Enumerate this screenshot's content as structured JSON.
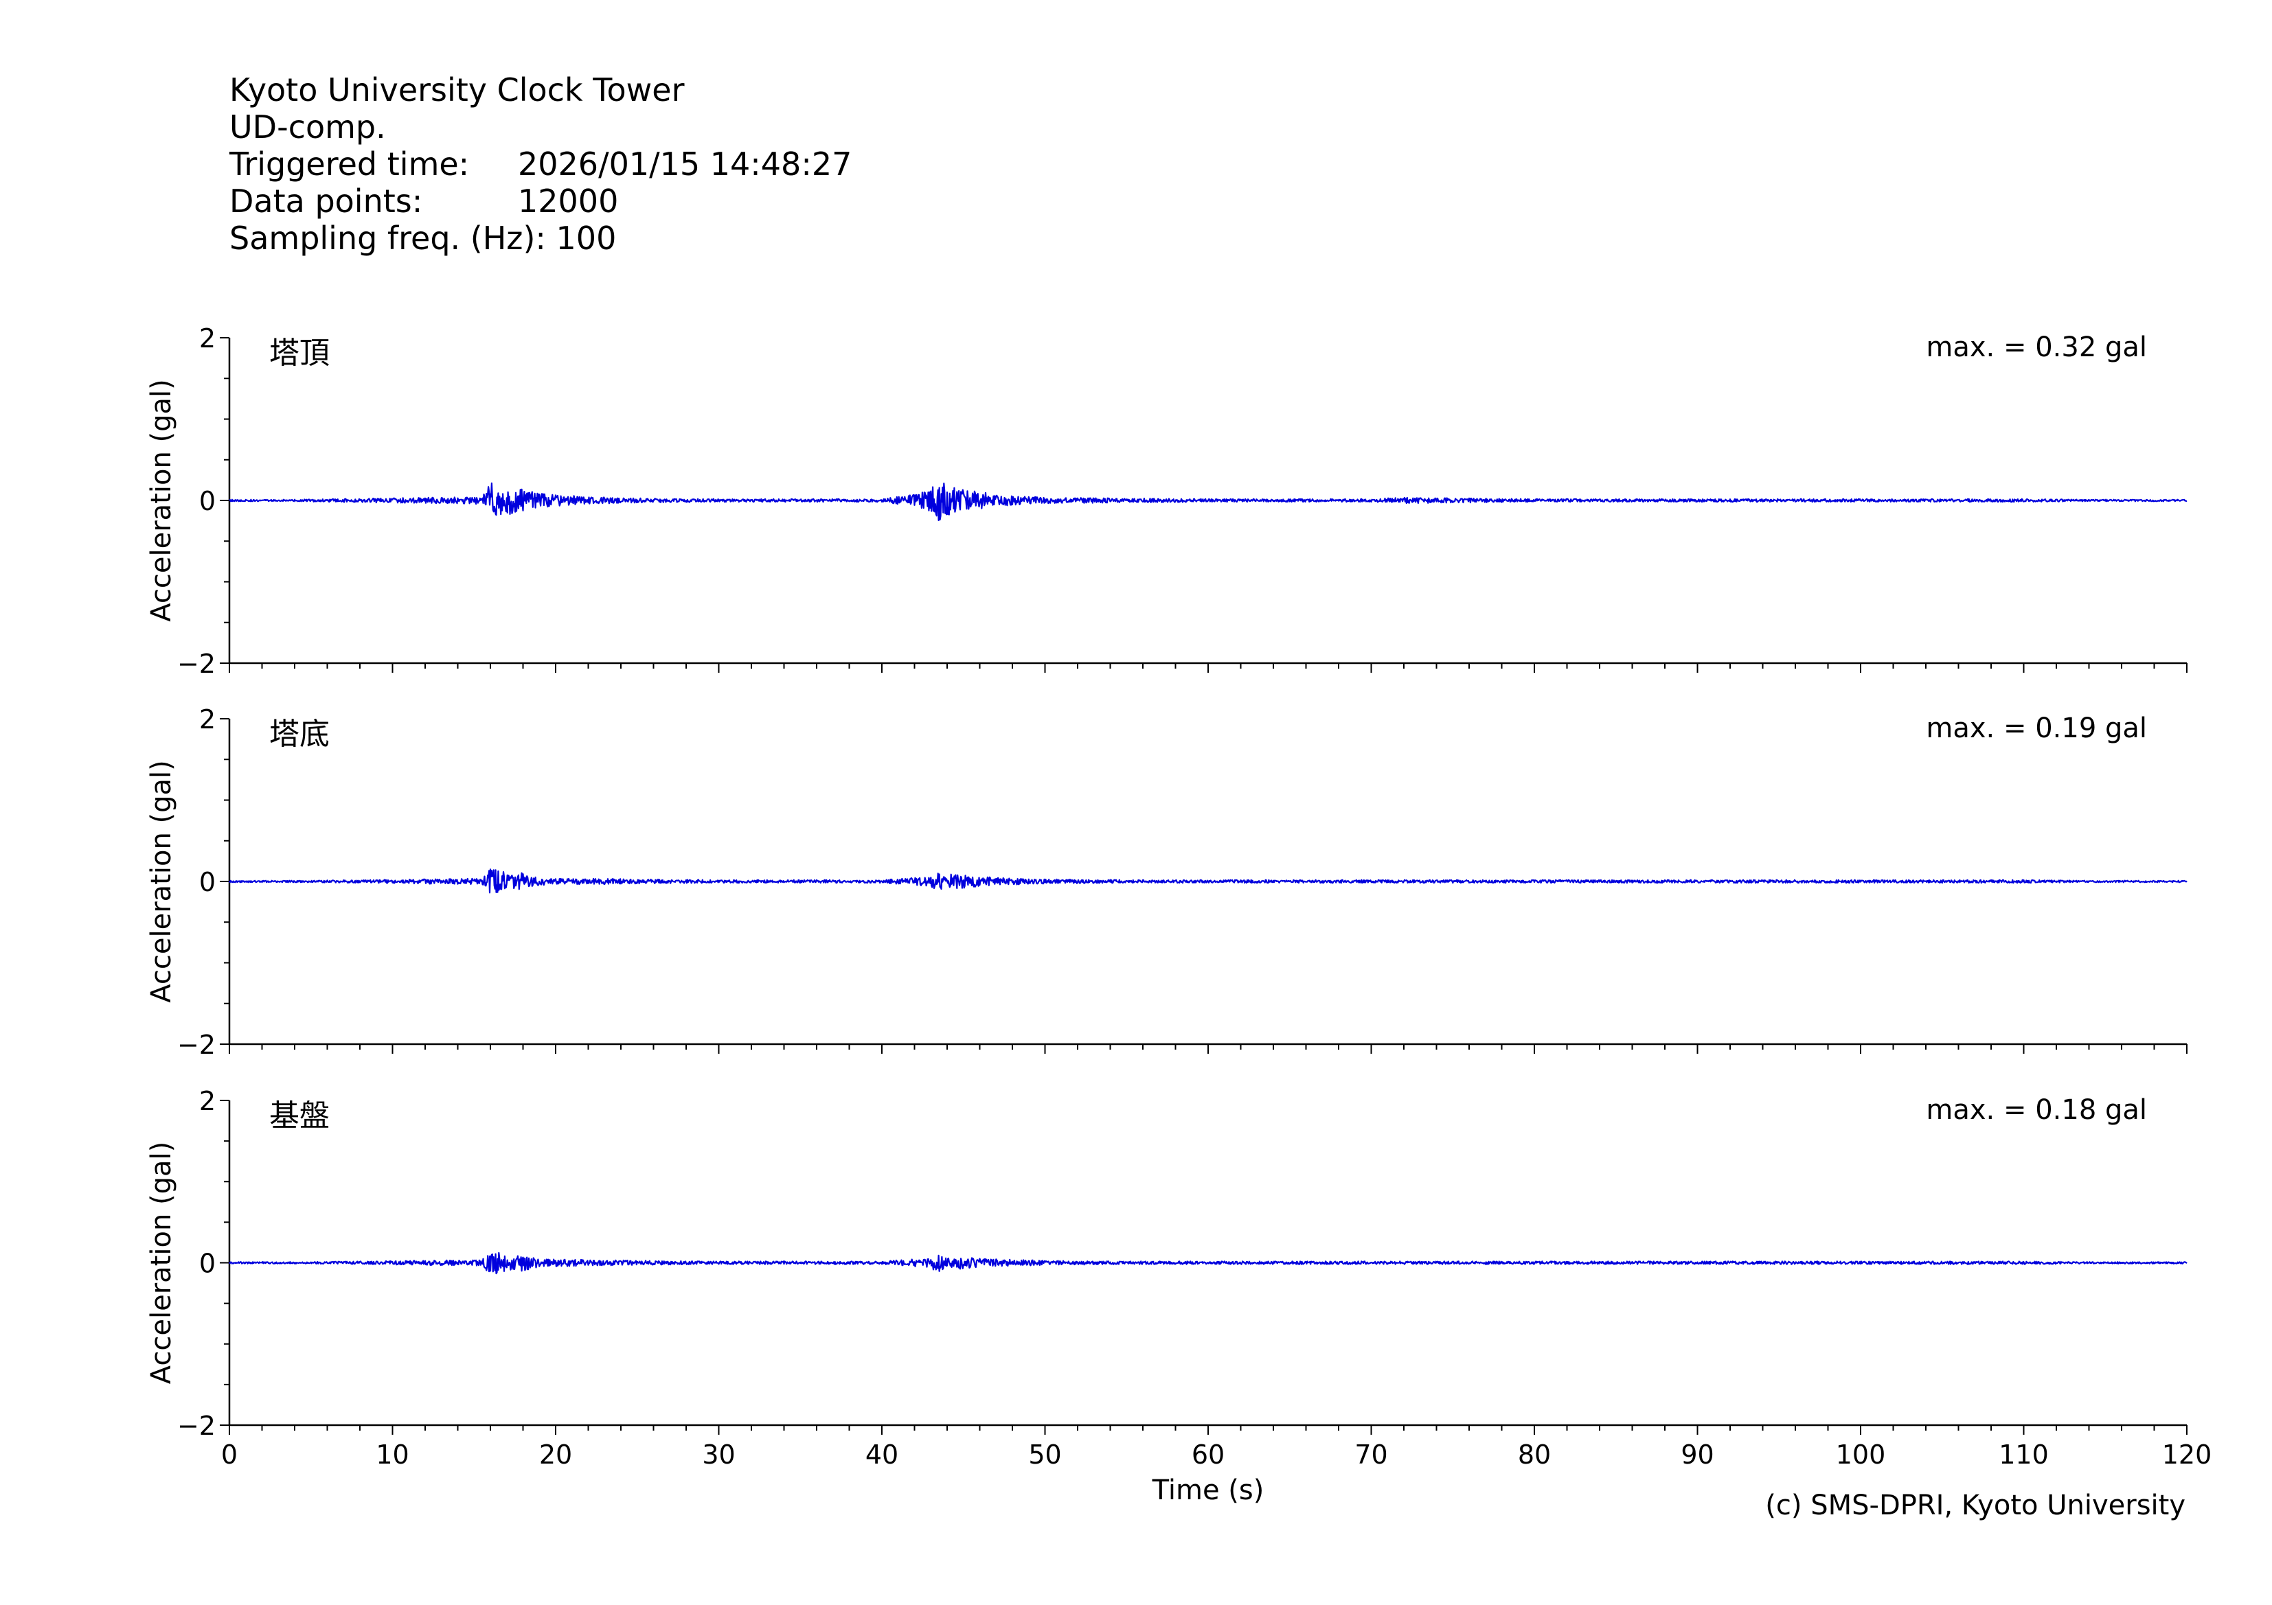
{
  "header": {
    "station": "Kyoto University Clock Tower",
    "component": "UD-comp.",
    "triggered_label": "Triggered time:",
    "triggered_value": "2026/01/15 14:48:27",
    "points_label": "Data points:",
    "points_value": "12000",
    "freq_label": "Sampling freq. (Hz):",
    "freq_value": "100"
  },
  "footer": {
    "credit": "(c) SMS-DPRI, Kyoto University"
  },
  "colors": {
    "trace": "#0000dd",
    "axis": "#000000"
  },
  "chart_data": [
    {
      "type": "line",
      "panel_label": "塔頂",
      "max_label": "max. = 0.32 gal",
      "ylabel": "Acceleration (gal)",
      "xlabel": "",
      "ylim": [
        -2,
        2
      ],
      "yticks": [
        -2,
        0,
        2
      ],
      "xlim": [
        0,
        120
      ],
      "series": [
        {
          "x": [
            0,
            15.5,
            16,
            16.5,
            17,
            17.5,
            18,
            18.5,
            19,
            20,
            22,
            25,
            30,
            35,
            40,
            42,
            43,
            43.5,
            44,
            45,
            46,
            47,
            50,
            55,
            60,
            70,
            72,
            80,
            90,
            100,
            110,
            120
          ],
          "y": [
            0,
            0.05,
            0.25,
            -0.2,
            0.18,
            -0.22,
            0.15,
            -0.12,
            0.1,
            -0.08,
            0.05,
            0.03,
            0.02,
            0.02,
            0.02,
            0.08,
            -0.15,
            0.32,
            -0.2,
            0.15,
            -0.12,
            0.08,
            0.04,
            0.03,
            0.02,
            0.02,
            0.04,
            0.02,
            0.02,
            0.02,
            0.02,
            0
          ]
        }
      ]
    },
    {
      "type": "line",
      "panel_label": "塔底",
      "max_label": "max. = 0.19 gal",
      "ylabel": "Acceleration (gal)",
      "xlabel": "",
      "ylim": [
        -2,
        2
      ],
      "yticks": [
        -2,
        0,
        2
      ],
      "xlim": [
        0,
        120
      ],
      "series": [
        {
          "x": [
            0,
            15.5,
            16,
            16.5,
            17,
            17.5,
            18,
            18.5,
            19,
            20,
            22,
            25,
            30,
            35,
            40,
            42,
            43,
            43.5,
            44,
            45,
            46,
            47,
            50,
            55,
            60,
            70,
            80,
            90,
            100,
            110,
            120
          ],
          "y": [
            0,
            0.04,
            0.19,
            -0.15,
            0.12,
            -0.1,
            0.12,
            -0.08,
            0.07,
            -0.05,
            0.04,
            0.03,
            0.02,
            0.02,
            0.02,
            0.05,
            -0.08,
            0.12,
            -0.1,
            0.09,
            -0.07,
            0.05,
            0.03,
            0.02,
            0.02,
            0.02,
            0.02,
            0.02,
            0.02,
            0.02,
            0
          ]
        }
      ]
    },
    {
      "type": "line",
      "panel_label": "基盤",
      "max_label": "max. = 0.18 gal",
      "ylabel": "Acceleration (gal)",
      "xlabel": "Time (s)",
      "ylim": [
        -2,
        2
      ],
      "yticks": [
        -2,
        0,
        2
      ],
      "xlim": [
        0,
        120
      ],
      "xticks": [
        0,
        10,
        20,
        30,
        40,
        50,
        60,
        70,
        80,
        90,
        100,
        110,
        120
      ],
      "series": [
        {
          "x": [
            0,
            15.5,
            16,
            16.5,
            17,
            17.5,
            18,
            18.5,
            19,
            20,
            22,
            25,
            30,
            35,
            40,
            42,
            43,
            43.5,
            44,
            45,
            46,
            47,
            50,
            55,
            60,
            70,
            80,
            90,
            100,
            110,
            120
          ],
          "y": [
            0,
            0.04,
            0.18,
            -0.15,
            0.1,
            -0.09,
            0.12,
            -0.08,
            0.06,
            -0.05,
            0.04,
            0.03,
            0.02,
            0.02,
            0.02,
            0.05,
            -0.08,
            0.13,
            -0.1,
            0.08,
            -0.06,
            0.05,
            0.03,
            0.02,
            0.02,
            0.02,
            0.02,
            0.02,
            0.02,
            0.02,
            0
          ]
        }
      ]
    }
  ]
}
